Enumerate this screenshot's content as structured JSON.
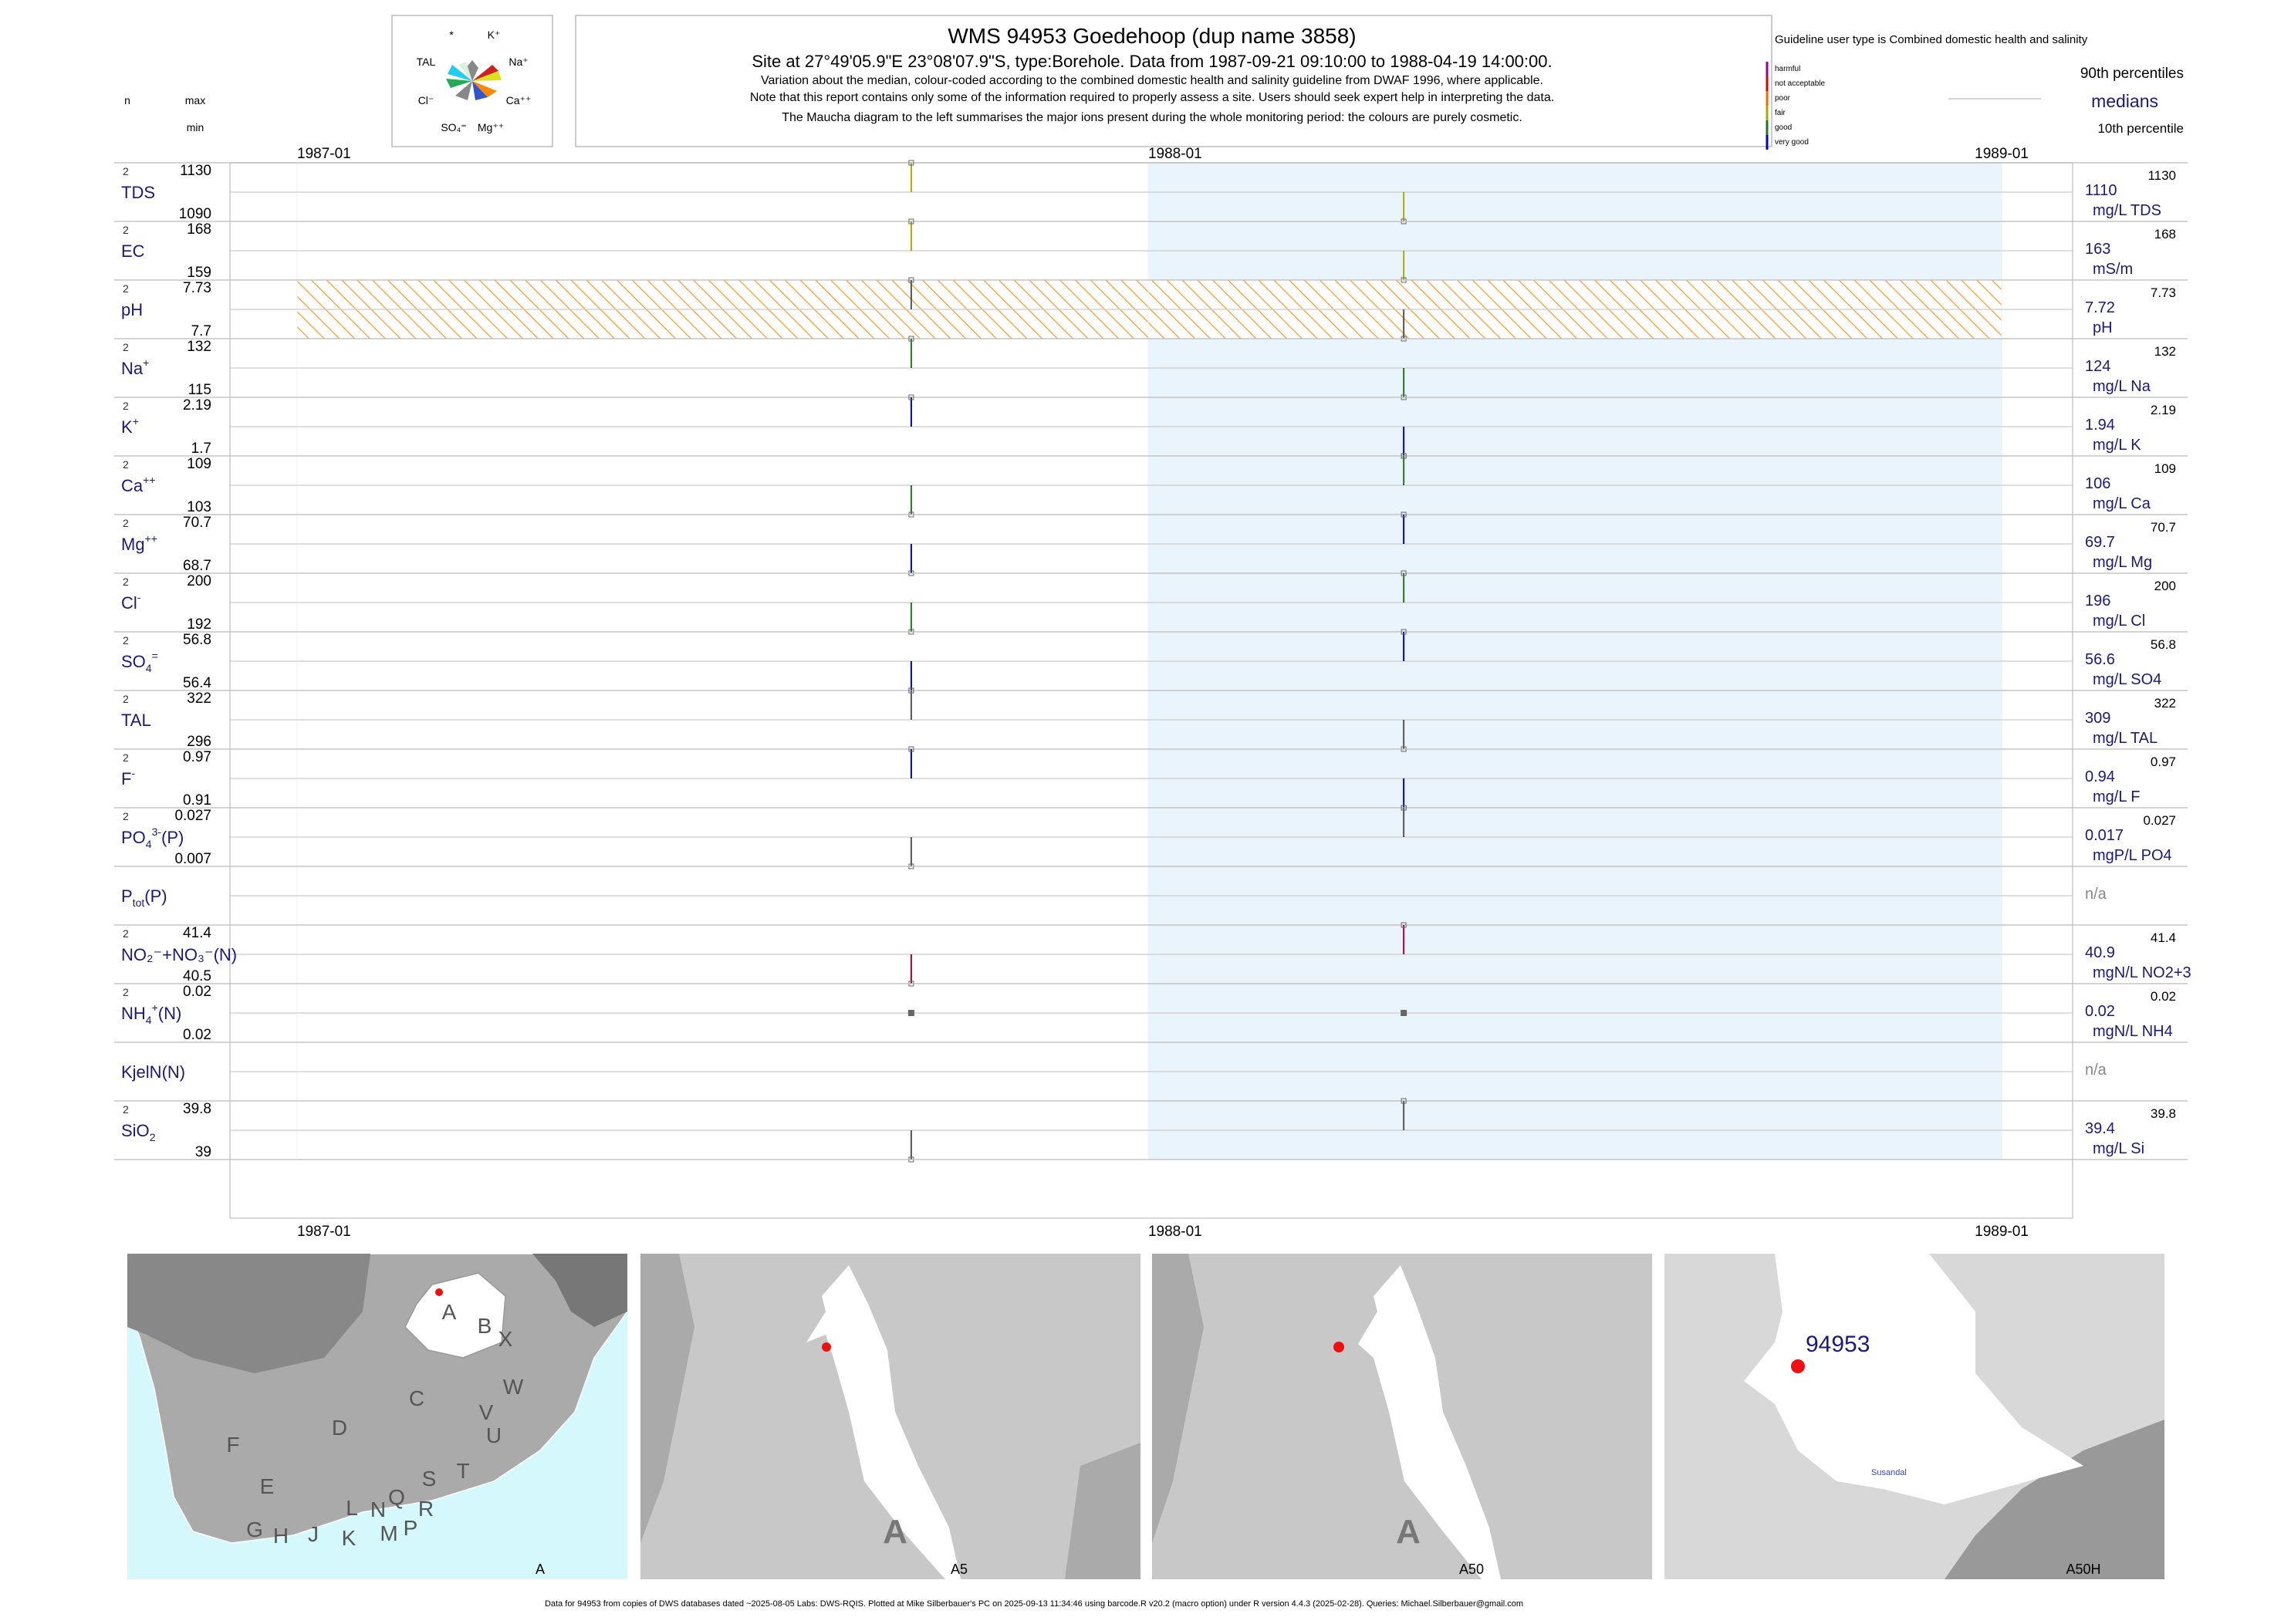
{
  "header": {
    "title": "WMS 94953  Goedehoop (dup name 3858)",
    "subtitle": "Site at 27°49'05.9\"E 23°08'07.9\"S, type:Borehole.  Data from 1987-09-21 09:10:00 to 1988-04-19 14:00:00.",
    "note1": "Variation about the median,  colour-coded according to the combined domestic health and salinity guideline from DWAF 1996, where applicable.",
    "note2": "Note that this report contains only some of the information required to properly assess a site. Users should seek expert help in interpreting the data.",
    "note3": "The Maucha diagram to the left summarises the major ions present during the whole monitoring period: the colours are purely cosmetic."
  },
  "maucha": {
    "labels": [
      "*",
      "K⁺",
      "TAL",
      "Na⁺",
      "Cl⁻",
      "Ca⁺⁺",
      "SO₄⁼",
      "Mg⁺⁺"
    ]
  },
  "left_header": {
    "n": "n",
    "max": "max",
    "min": "min"
  },
  "legend": {
    "title": "Guideline user type is Combined domestic health and salinity",
    "categories": [
      {
        "label": "harmful",
        "color": "#990099"
      },
      {
        "label": "not acceptable",
        "color": "#dd0000"
      },
      {
        "label": "poor",
        "color": "#ff6600"
      },
      {
        "label": "fair",
        "color": "#aaaa00"
      },
      {
        "label": "good",
        "color": "#227722"
      },
      {
        "label": "very good",
        "color": "#0000cc"
      }
    ],
    "p90": "90th percentiles",
    "medians": "medians",
    "p10": "10th percentile"
  },
  "chart_data": {
    "type": "line",
    "time_axis": {
      "start": "1987-01",
      "end": "1989-01",
      "ticks": [
        "1987-01",
        "1988-01",
        "1989-01"
      ]
    },
    "samples": [
      "1987-09-21 09:10:00",
      "1988-04-19 14:00:00"
    ],
    "ph_guideline_band": {
      "color": "#ff8800"
    },
    "series": [
      {
        "name": "TDS",
        "n": "2",
        "max": "1130",
        "min": "1090",
        "median": "1110",
        "unit": "mg/L TDS",
        "points": [
          {
            "v": 1130,
            "c": "#aaaa00"
          },
          {
            "v": 1090,
            "c": "#aaaa00"
          }
        ]
      },
      {
        "name": "EC",
        "n": "2",
        "max": "168",
        "min": "159",
        "median": "163",
        "unit": "mS/m",
        "points": [
          {
            "v": 168,
            "c": "#aaaa00"
          },
          {
            "v": 159,
            "c": "#aaaa00"
          }
        ]
      },
      {
        "name": "pH",
        "n": "2",
        "max": "7.73",
        "min": "7.7",
        "median": "7.72",
        "unit": "pH",
        "points": [
          {
            "v": 7.73,
            "c": "#555555"
          },
          {
            "v": 7.7,
            "c": "#555555"
          }
        ]
      },
      {
        "name": "Na",
        "sup": "+",
        "n": "2",
        "max": "132",
        "min": "115",
        "median": "124",
        "unit": "mg/L Na",
        "points": [
          {
            "v": 132,
            "c": "#227722"
          },
          {
            "v": 115,
            "c": "#227722"
          }
        ]
      },
      {
        "name": "K",
        "sup": "+",
        "n": "2",
        "max": "2.19",
        "min": "1.7",
        "median": "1.94",
        "unit": "mg/L K",
        "points": [
          {
            "v": 2.19,
            "c": "#0000cc"
          },
          {
            "v": 1.7,
            "c": "#0000cc"
          }
        ]
      },
      {
        "name": "Ca",
        "sup": "++",
        "n": "2",
        "max": "109",
        "min": "103",
        "median": "106",
        "unit": "mg/L Ca",
        "points": [
          {
            "v": 103,
            "c": "#227722"
          },
          {
            "v": 109,
            "c": "#227722"
          }
        ]
      },
      {
        "name": "Mg",
        "sup": "++",
        "n": "2",
        "max": "70.7",
        "min": "68.7",
        "median": "69.7",
        "unit": "mg/L Mg",
        "points": [
          {
            "v": 68.7,
            "c": "#0000cc"
          },
          {
            "v": 70.7,
            "c": "#0000cc"
          }
        ]
      },
      {
        "name": "Cl",
        "sup": "-",
        "n": "2",
        "max": "200",
        "min": "192",
        "median": "196",
        "unit": "mg/L Cl",
        "points": [
          {
            "v": 192,
            "c": "#227722"
          },
          {
            "v": 200,
            "c": "#227722"
          }
        ]
      },
      {
        "name": "SO",
        "sub": "4",
        "sup": "=",
        "n": "2",
        "max": "56.8",
        "min": "56.4",
        "median": "56.6",
        "unit": "mg/L SO4",
        "points": [
          {
            "v": 56.4,
            "c": "#0000cc"
          },
          {
            "v": 56.8,
            "c": "#0000cc"
          }
        ]
      },
      {
        "name": "TAL",
        "n": "2",
        "max": "322",
        "min": "296",
        "median": "309",
        "unit": "mg/L TAL",
        "points": [
          {
            "v": 322,
            "c": "#555555"
          },
          {
            "v": 296,
            "c": "#555555"
          }
        ]
      },
      {
        "name": "F",
        "sup": "-",
        "n": "2",
        "max": "0.97",
        "min": "0.91",
        "median": "0.94",
        "unit": "mg/L F",
        "points": [
          {
            "v": 0.97,
            "c": "#0000cc"
          },
          {
            "v": 0.91,
            "c": "#0000cc"
          }
        ]
      },
      {
        "name": "PO",
        "sub": "4",
        "sup": "3-",
        "suffix": "(P)",
        "n": "2",
        "max": "0.027",
        "min": "0.007",
        "median": "0.017",
        "unit": "mgP/L PO4",
        "points": [
          {
            "v": 0.007,
            "c": "#555555"
          },
          {
            "v": 0.027,
            "c": "#555555"
          }
        ]
      },
      {
        "name": "P",
        "sub": "tot",
        "suffix": "(P)",
        "n": "",
        "max": "",
        "min": "",
        "median": "n/a",
        "unit": "",
        "points": []
      },
      {
        "name": "NO₂⁻+NO₃⁻(N)",
        "n": "2",
        "max": "41.4",
        "min": "40.5",
        "median": "40.9",
        "unit": "mgN/L NO2+3",
        "points": [
          {
            "v": 40.5,
            "c": "#aa0033"
          },
          {
            "v": 41.4,
            "c": "#aa0033"
          }
        ]
      },
      {
        "name": "NH",
        "sub": "4",
        "sup": "+",
        "suffix": "(N)",
        "n": "2",
        "max": "0.02",
        "min": "0.02",
        "median": "0.02",
        "unit": "mgN/L NH4",
        "points": [
          {
            "v": 0.02,
            "c": "#555555"
          },
          {
            "v": 0.02,
            "c": "#555555"
          }
        ]
      },
      {
        "name": "KjelN(N)",
        "n": "",
        "max": "",
        "min": "",
        "median": "n/a",
        "unit": "",
        "points": []
      },
      {
        "name": "SiO",
        "sub": "2",
        "n": "2",
        "max": "39.8",
        "min": "39",
        "median": "39.4",
        "unit": "mg/L Si",
        "points": [
          {
            "v": 39,
            "c": "#555555"
          },
          {
            "v": 39.8,
            "c": "#555555"
          }
        ]
      }
    ]
  },
  "maps": [
    {
      "label": "A",
      "regions": [
        "A",
        "B",
        "X",
        "W",
        "C",
        "V",
        "D",
        "U",
        "F",
        "T",
        "E",
        "S",
        "L",
        "N",
        "Q",
        "R",
        "G",
        "H",
        "J",
        "K",
        "M",
        "P"
      ]
    },
    {
      "label": "A5",
      "big": "A"
    },
    {
      "label": "A50",
      "big": "A"
    },
    {
      "label": "A50H",
      "site": "94953",
      "place": "Susandal"
    }
  ],
  "footer": "Data for 94953 from copies of DWS databases dated ~2025-08-05 Labs: DWS-RQIS. Plotted at Mike Silberbauer's PC on 2025-09-13 11:34:46 using barcode.R v20.2 (macro option) under R version 4.4.3 (2025-02-28). Queries: Michael.Silberbauer@gmail.com"
}
